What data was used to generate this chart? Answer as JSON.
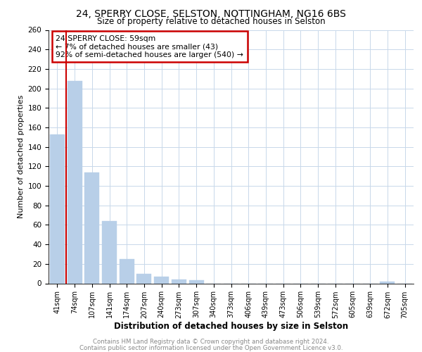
{
  "title1": "24, SPERRY CLOSE, SELSTON, NOTTINGHAM, NG16 6BS",
  "title2": "Size of property relative to detached houses in Selston",
  "xlabel": "Distribution of detached houses by size in Selston",
  "ylabel": "Number of detached properties",
  "categories": [
    "41sqm",
    "74sqm",
    "107sqm",
    "141sqm",
    "174sqm",
    "207sqm",
    "240sqm",
    "273sqm",
    "307sqm",
    "340sqm",
    "373sqm",
    "406sqm",
    "439sqm",
    "473sqm",
    "506sqm",
    "539sqm",
    "572sqm",
    "605sqm",
    "639sqm",
    "672sqm",
    "705sqm"
  ],
  "values": [
    153,
    208,
    114,
    64,
    25,
    10,
    7,
    4,
    3,
    0,
    0,
    0,
    0,
    0,
    0,
    0,
    0,
    0,
    0,
    2,
    0
  ],
  "bar_color": "#b8cfe8",
  "bar_edge_color": "#b8cfe8",
  "annotation_box_color": "#ffffff",
  "annotation_border_color": "#cc0000",
  "marker_line_color": "#cc0000",
  "annotation_text_line1": "24 SPERRY CLOSE: 59sqm",
  "annotation_text_line2": "← 7% of detached houses are smaller (43)",
  "annotation_text_line3": "92% of semi-detached houses are larger (540) →",
  "ylim": [
    0,
    260
  ],
  "yticks": [
    0,
    20,
    40,
    60,
    80,
    100,
    120,
    140,
    160,
    180,
    200,
    220,
    240,
    260
  ],
  "grid_color": "#c8d8ea",
  "background_color": "#ffffff",
  "footer_line1": "Contains HM Land Registry data © Crown copyright and database right 2024.",
  "footer_line2": "Contains public sector information licensed under the Open Government Licence v3.0."
}
